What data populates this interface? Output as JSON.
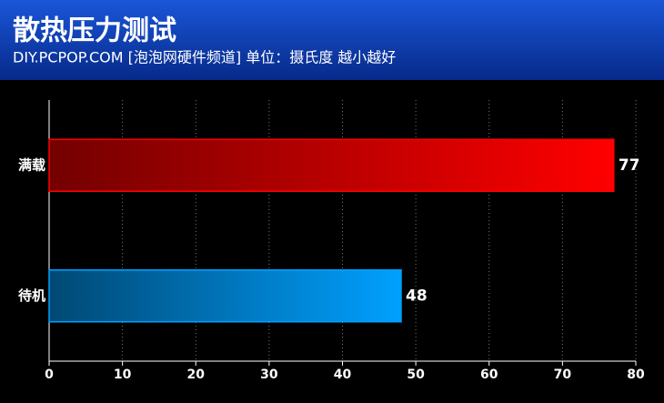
{
  "chart_data": {
    "type": "hbar",
    "title": "散热压力测试",
    "subtitle": "DIY.PCPOP.COM [泡泡网硬件频道] 单位：摄氏度  越小越好",
    "categories": [
      "满载",
      "待机"
    ],
    "values": [
      77,
      48
    ],
    "colors": [
      "#ff0000",
      "#00a0ff"
    ],
    "xlim": [
      0,
      80
    ],
    "xticks": [
      0,
      10,
      20,
      30,
      40,
      50,
      60,
      70,
      80
    ],
    "grid": true
  }
}
